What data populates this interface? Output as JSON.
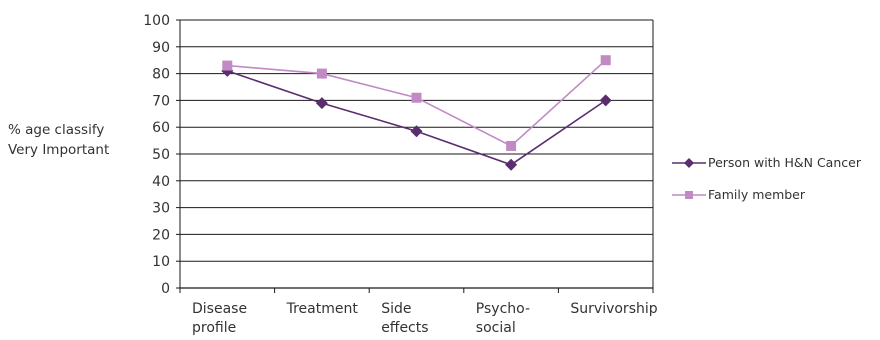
{
  "chart_data": {
    "type": "line",
    "title": "",
    "ylabel_lines": [
      "% age classify",
      "Very Important"
    ],
    "xlabel": "",
    "categories": [
      [
        "Disease",
        "profile"
      ],
      [
        "Treatment"
      ],
      [
        "Side",
        "effects"
      ],
      [
        "Psycho-",
        "social"
      ],
      [
        "Survivorship"
      ]
    ],
    "ylim": [
      0,
      100
    ],
    "yticks": [
      "0",
      "10",
      "20",
      "30",
      "40",
      "50",
      "60",
      "70",
      "80",
      "90",
      "100"
    ],
    "grid": true,
    "legend_position": "right",
    "series": [
      {
        "name": "Person with H&N Cancer",
        "values": [
          81,
          69,
          58.5,
          46,
          70
        ],
        "color": "#5b2d6e",
        "marker": "diamond"
      },
      {
        "name": "Family member",
        "values": [
          83,
          80,
          71,
          53,
          85
        ],
        "color": "#c18ac4",
        "marker": "square"
      }
    ]
  }
}
